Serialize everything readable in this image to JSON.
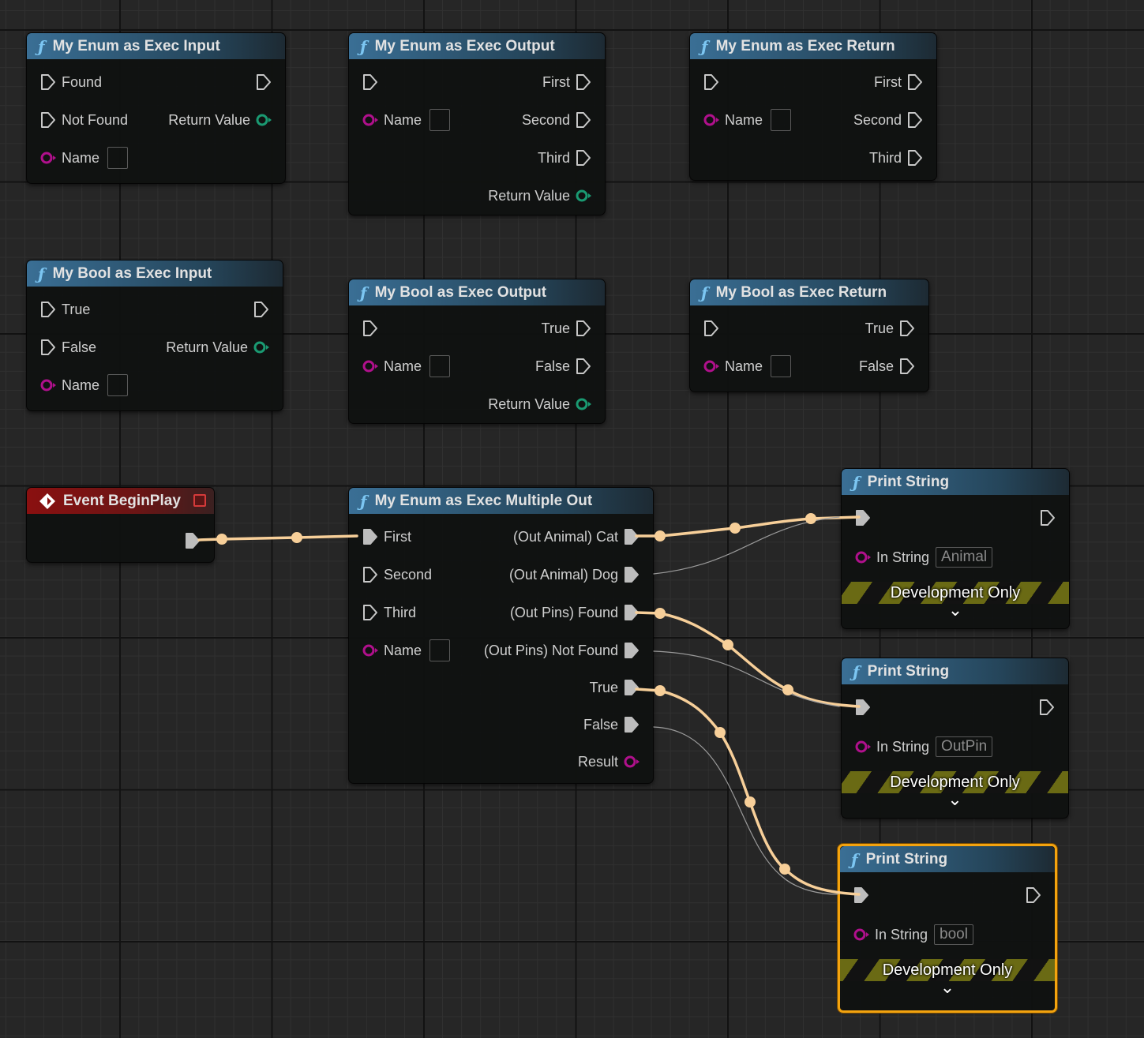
{
  "colors": {
    "exec_wire": "#f7cf99",
    "function_header": "#3a6f95",
    "event_header": "#8a1010",
    "string_pin": "#b0108c",
    "bool_pin": "#1a9a72",
    "selection": "#f3a30f",
    "dev_stripe": "#6a6a14"
  },
  "nodes": [
    {
      "title": "My Enum as Exec Input",
      "icon": "function-icon",
      "rows": [
        {
          "left": {
            "pin": "exec-in",
            "label": "Found"
          },
          "right": {
            "pin": "exec-out",
            "label": ""
          }
        },
        {
          "left": {
            "pin": "exec-in",
            "label": "Not Found"
          },
          "right": {
            "pin": "bool",
            "label": "Return Value"
          }
        },
        {
          "left": {
            "pin": "string",
            "label": "Name",
            "box": true
          }
        }
      ]
    },
    {
      "title": "My Enum as Exec Output",
      "icon": "function-icon",
      "rows": [
        {
          "left": {
            "pin": "exec-in",
            "label": ""
          },
          "right": {
            "pin": "exec-out",
            "label": "First"
          }
        },
        {
          "left": {
            "pin": "string",
            "label": "Name",
            "box": true
          },
          "right": {
            "pin": "exec-out",
            "label": "Second"
          }
        },
        {
          "right": {
            "pin": "exec-out",
            "label": "Third"
          }
        },
        {
          "right": {
            "pin": "bool",
            "label": "Return Value"
          }
        }
      ]
    },
    {
      "title": "My Enum as Exec Return",
      "icon": "function-icon",
      "rows": [
        {
          "left": {
            "pin": "exec-in",
            "label": ""
          },
          "right": {
            "pin": "exec-out",
            "label": "First"
          }
        },
        {
          "left": {
            "pin": "string",
            "label": "Name",
            "box": true
          },
          "right": {
            "pin": "exec-out",
            "label": "Second"
          }
        },
        {
          "right": {
            "pin": "exec-out",
            "label": "Third"
          }
        }
      ]
    },
    {
      "title": "My Bool as Exec Input",
      "icon": "function-icon",
      "rows": [
        {
          "left": {
            "pin": "exec-in",
            "label": "True"
          },
          "right": {
            "pin": "exec-out",
            "label": ""
          }
        },
        {
          "left": {
            "pin": "exec-in",
            "label": "False"
          },
          "right": {
            "pin": "bool",
            "label": "Return Value"
          }
        },
        {
          "left": {
            "pin": "string",
            "label": "Name",
            "box": true
          }
        }
      ]
    },
    {
      "title": "My Bool as Exec Output",
      "icon": "function-icon",
      "rows": [
        {
          "left": {
            "pin": "exec-in",
            "label": ""
          },
          "right": {
            "pin": "exec-out",
            "label": "True"
          }
        },
        {
          "left": {
            "pin": "string",
            "label": "Name",
            "box": true
          },
          "right": {
            "pin": "exec-out",
            "label": "False"
          }
        },
        {
          "right": {
            "pin": "bool",
            "label": "Return Value"
          }
        }
      ]
    },
    {
      "title": "My Bool as Exec Return",
      "icon": "function-icon",
      "rows": [
        {
          "left": {
            "pin": "exec-in",
            "label": ""
          },
          "right": {
            "pin": "exec-out",
            "label": "True"
          }
        },
        {
          "left": {
            "pin": "string",
            "label": "Name",
            "box": true
          },
          "right": {
            "pin": "exec-out",
            "label": "False"
          }
        }
      ]
    },
    {
      "title": "Event BeginPlay",
      "icon": "event-icon",
      "event": true,
      "rows": [
        {
          "right": {
            "pin": "exec-filled",
            "label": ""
          }
        }
      ]
    },
    {
      "title": "My Enum as Exec Multiple Out",
      "icon": "function-icon",
      "rows": [
        {
          "left": {
            "pin": "exec-filled",
            "label": "First"
          },
          "right": {
            "pin": "exec-filled",
            "label": "(Out Animal) Cat"
          }
        },
        {
          "left": {
            "pin": "exec-in",
            "label": "Second"
          },
          "right": {
            "pin": "exec-filled",
            "label": "(Out Animal) Dog"
          }
        },
        {
          "left": {
            "pin": "exec-in",
            "label": "Third"
          },
          "right": {
            "pin": "exec-filled",
            "label": "(Out Pins) Found"
          }
        },
        {
          "left": {
            "pin": "string",
            "label": "Name",
            "box": true
          },
          "right": {
            "pin": "exec-filled",
            "label": "(Out Pins) Not Found"
          }
        },
        {
          "right": {
            "pin": "exec-filled",
            "label": "True"
          }
        },
        {
          "right": {
            "pin": "exec-filled",
            "label": "False"
          }
        },
        {
          "right": {
            "pin": "string",
            "label": "Result"
          }
        }
      ]
    },
    {
      "title": "Print String",
      "icon": "function-icon",
      "print": true,
      "in_string_label": "In String",
      "in_string": "Animal",
      "dev": "Development Only"
    },
    {
      "title": "Print String",
      "icon": "function-icon",
      "print": true,
      "in_string_label": "In String",
      "in_string": "OutPin",
      "dev": "Development Only"
    },
    {
      "title": "Print String",
      "icon": "function-icon",
      "print": true,
      "selected": true,
      "in_string_label": "In String",
      "in_string": "bool",
      "dev": "Development Only"
    }
  ]
}
